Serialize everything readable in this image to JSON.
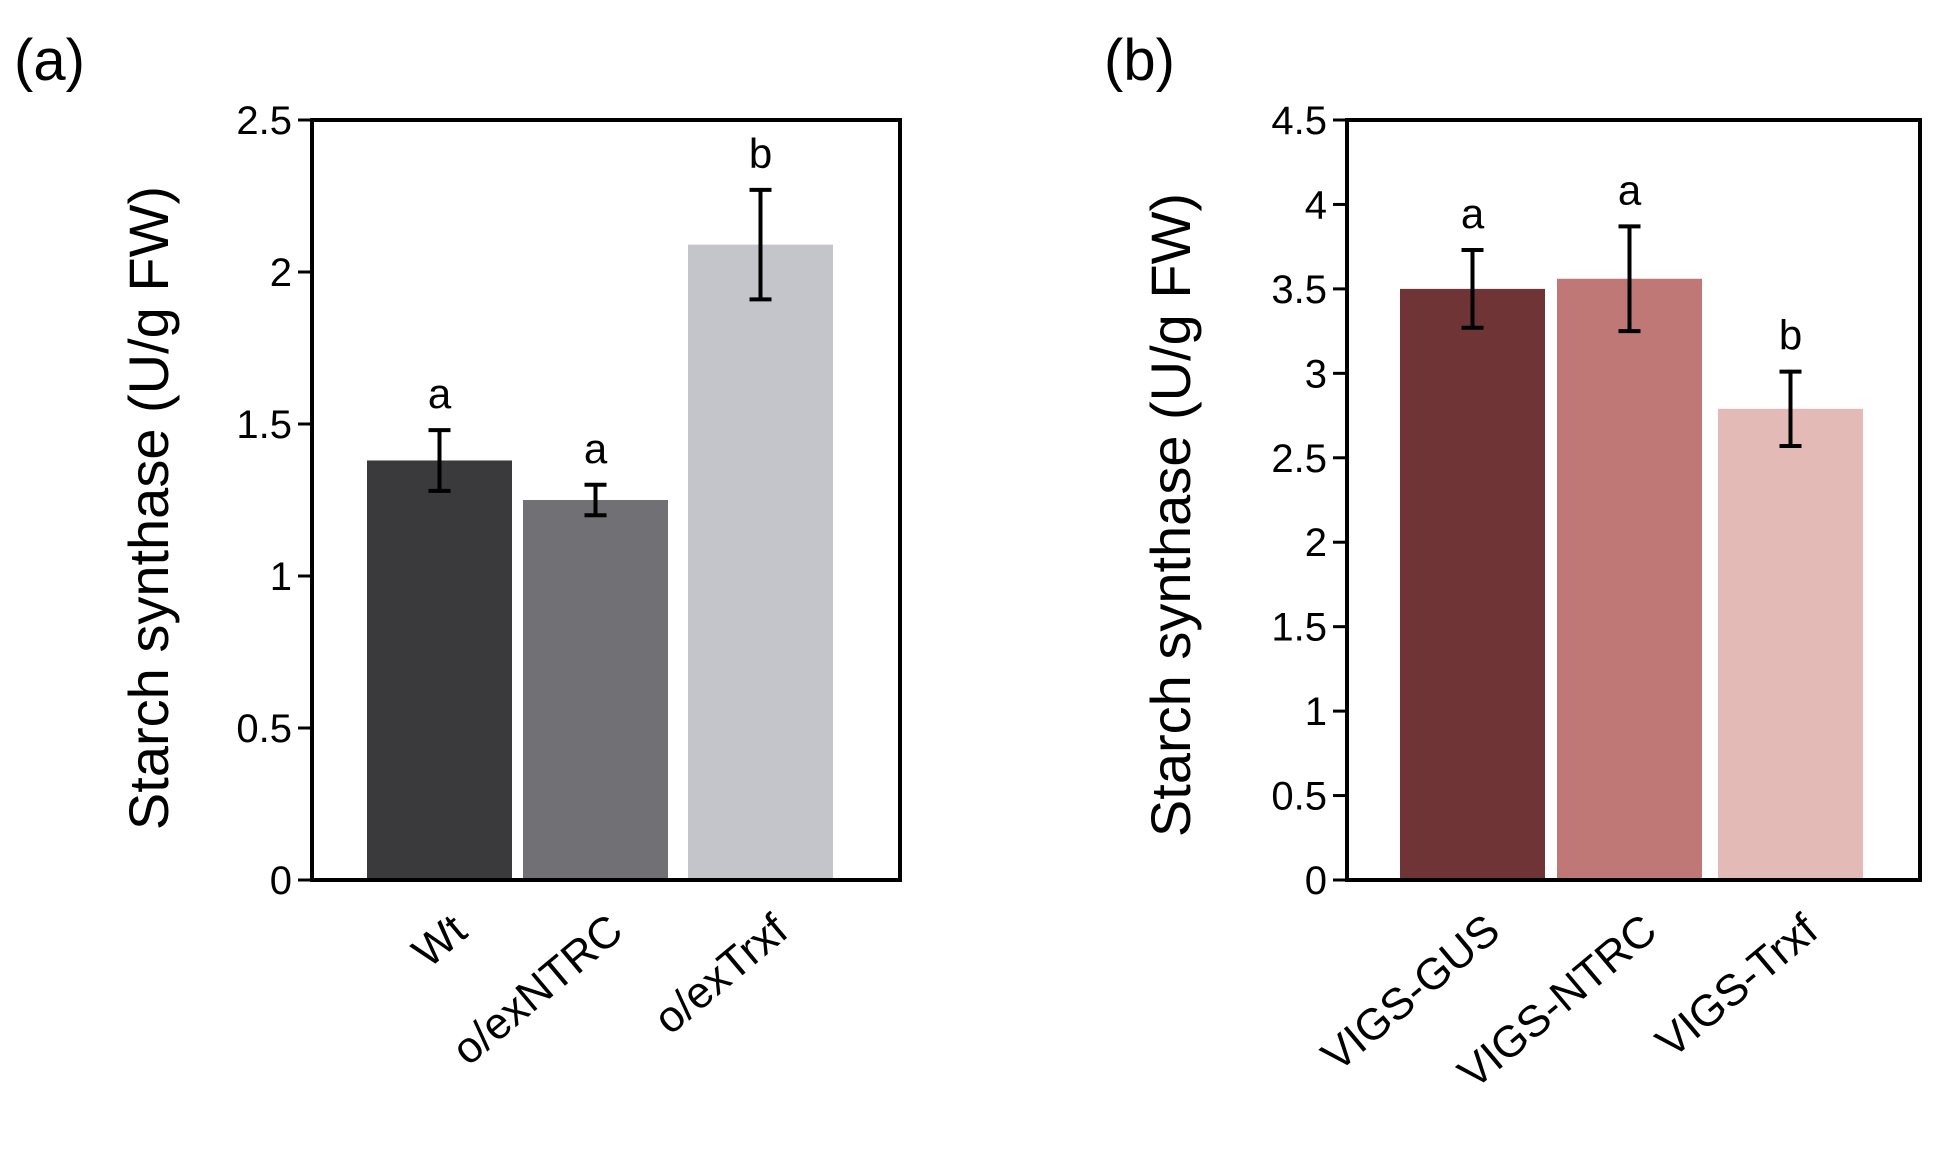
{
  "chart_data": [
    {
      "type": "bar",
      "panel_label": "(a)",
      "ylabel": "Starch synthase (U/g FW)",
      "ylim": [
        0,
        2.5
      ],
      "yticks": [
        "0",
        "0.5",
        "1",
        "1.5",
        "2",
        "2.5"
      ],
      "categories": [
        "Wt",
        "o/exNTRC",
        "o/exTrxf"
      ],
      "values": [
        1.38,
        1.25,
        2.09
      ],
      "errors": [
        0.1,
        0.05,
        0.18
      ],
      "significance": [
        "a",
        "a",
        "b"
      ],
      "colors": [
        "#3a3a3c",
        "#717075",
        "#c4c5cb"
      ],
      "grid": false
    },
    {
      "type": "bar",
      "panel_label": "(b)",
      "ylabel": "Starch synthase (U/g FW)",
      "ylim": [
        0,
        4.5
      ],
      "yticks": [
        "0",
        "0.5",
        "1",
        "1.5",
        "2",
        "2.5",
        "3",
        "3.5",
        "4",
        "4.5"
      ],
      "categories": [
        "VIGS-GUS",
        "VIGS-NTRC",
        "VIGS-Trxf"
      ],
      "values": [
        3.5,
        3.56,
        2.79
      ],
      "errors": [
        0.23,
        0.31,
        0.22
      ],
      "significance": [
        "a",
        "a",
        "b"
      ],
      "colors": [
        "#6e3436",
        "#c07876",
        "#e3bab6"
      ],
      "grid": false
    }
  ]
}
